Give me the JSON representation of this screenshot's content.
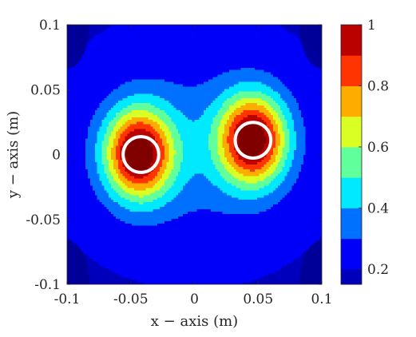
{
  "chart_data": {
    "type": "heatmap",
    "subtype": "filled-contour",
    "xlabel": "x − axis (m)",
    "ylabel": "y − axis (m)",
    "xlim": [
      -0.1,
      0.1
    ],
    "ylim": [
      -0.1,
      0.1
    ],
    "x_ticks": [
      -0.1,
      -0.05,
      0,
      0.05,
      0.1
    ],
    "x_tick_labels": [
      "-0.1",
      "-0.05",
      "0",
      "0.05",
      "0.1"
    ],
    "y_ticks": [
      -0.1,
      -0.05,
      0,
      0.05,
      0.1
    ],
    "y_tick_labels": [
      "-0.1",
      "-0.05",
      "0",
      "0.05",
      "0.1"
    ],
    "colorbar": {
      "range": [
        0.15,
        1.0
      ],
      "ticks": [
        0.2,
        0.4,
        0.6,
        0.8,
        1
      ],
      "tick_labels": [
        "0.2",
        "0.4",
        "0.6",
        "0.8",
        "1"
      ],
      "colormap": "jet"
    },
    "peaks": [
      {
        "x": -0.044,
        "y": 0.001,
        "value": 1.0
      },
      {
        "x": 0.046,
        "y": 0.012,
        "value": 1.0
      }
    ],
    "circles": [
      {
        "cx": -0.042,
        "cy": 0.0,
        "r": 0.014,
        "color": "#ffffff"
      },
      {
        "cx": 0.046,
        "cy": 0.011,
        "r": 0.014,
        "color": "#ffffff"
      }
    ],
    "grid": false
  }
}
